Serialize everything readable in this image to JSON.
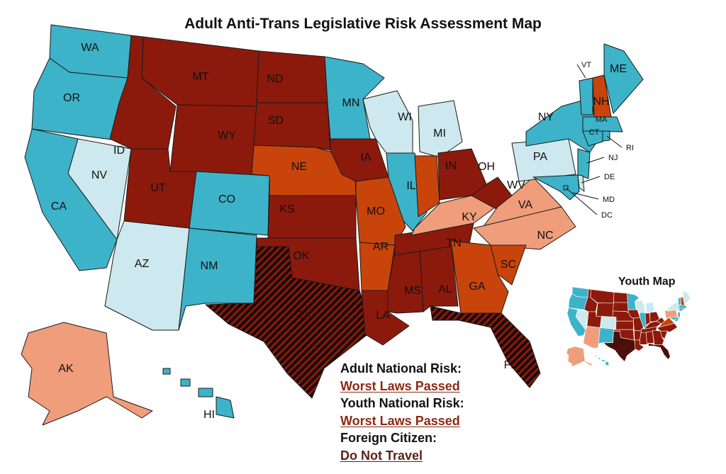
{
  "title": "Adult Anti-Trans Legislative Risk Assessment Map",
  "youth_map_title": "Youth Map",
  "legend": [
    {
      "label": "Adult National Risk:",
      "value": "Worst Laws Passed",
      "value_color": "#8b2a14"
    },
    {
      "label": "Youth National Risk:",
      "value": "Worst Laws Passed",
      "value_color": "#8b2a14"
    },
    {
      "label": "Foreign Citizen:",
      "value": "Do Not Travel",
      "value_color": "#5a2416"
    }
  ],
  "colors": {
    "teal": "#3db3c9",
    "light": "#cde9ef",
    "salmon": "#ef9d7b",
    "orange": "#c9440b",
    "darkred": "#8c1a0c",
    "hatch_base": "#1a0806",
    "hatch_stripe": "#8c1a0c",
    "border": "#1a1a1a"
  },
  "states": [
    {
      "code": "WA",
      "adult": "teal",
      "youth": "teal"
    },
    {
      "code": "OR",
      "adult": "teal",
      "youth": "teal"
    },
    {
      "code": "CA",
      "adult": "teal",
      "youth": "teal"
    },
    {
      "code": "NV",
      "adult": "light",
      "youth": "light"
    },
    {
      "code": "ID",
      "adult": "darkred",
      "youth": "darkred"
    },
    {
      "code": "MT",
      "adult": "darkred",
      "youth": "darkred"
    },
    {
      "code": "WY",
      "adult": "darkred",
      "youth": "darkred"
    },
    {
      "code": "UT",
      "adult": "darkred",
      "youth": "darkred"
    },
    {
      "code": "AZ",
      "adult": "light",
      "youth": "salmon"
    },
    {
      "code": "CO",
      "adult": "teal",
      "youth": "light"
    },
    {
      "code": "NM",
      "adult": "teal",
      "youth": "teal"
    },
    {
      "code": "ND",
      "adult": "darkred",
      "youth": "darkred"
    },
    {
      "code": "SD",
      "adult": "darkred",
      "youth": "darkred"
    },
    {
      "code": "NE",
      "adult": "orange",
      "youth": "darkred"
    },
    {
      "code": "KS",
      "adult": "darkred",
      "youth": "darkred"
    },
    {
      "code": "OK",
      "adult": "darkred",
      "youth": "darkred"
    },
    {
      "code": "TX",
      "adult": "hatch",
      "youth": "hatch"
    },
    {
      "code": "MN",
      "adult": "teal",
      "youth": "teal"
    },
    {
      "code": "IA",
      "adult": "darkred",
      "youth": "darkred"
    },
    {
      "code": "WI",
      "adult": "light",
      "youth": "light"
    },
    {
      "code": "MI",
      "adult": "light",
      "youth": "light"
    },
    {
      "code": "IL",
      "adult": "teal",
      "youth": "teal"
    },
    {
      "code": "MO",
      "adult": "orange",
      "youth": "darkred"
    },
    {
      "code": "AR",
      "adult": "orange",
      "youth": "darkred"
    },
    {
      "code": "LA",
      "adult": "darkred",
      "youth": "darkred"
    },
    {
      "code": "MS",
      "adult": "darkred",
      "youth": "darkred"
    },
    {
      "code": "AL",
      "adult": "darkred",
      "youth": "darkred"
    },
    {
      "code": "TN",
      "adult": "darkred",
      "youth": "darkred"
    },
    {
      "code": "KY",
      "adult": "salmon",
      "youth": "darkred"
    },
    {
      "code": "IN",
      "adult": "orange",
      "youth": "darkred"
    },
    {
      "code": "OH",
      "adult": "darkred",
      "youth": "darkred"
    },
    {
      "code": "WV",
      "adult": "darkred",
      "youth": "darkred"
    },
    {
      "code": "VA",
      "adult": "salmon",
      "youth": "orange"
    },
    {
      "code": "NC",
      "adult": "salmon",
      "youth": "darkred"
    },
    {
      "code": "SC",
      "adult": "orange",
      "youth": "darkred"
    },
    {
      "code": "GA",
      "adult": "orange",
      "youth": "darkred"
    },
    {
      "code": "FL",
      "adult": "hatch",
      "youth": "hatch"
    },
    {
      "code": "PA",
      "adult": "light",
      "youth": "salmon"
    },
    {
      "code": "NY",
      "adult": "teal",
      "youth": "light"
    },
    {
      "code": "NJ",
      "adult": "teal",
      "youth": "teal"
    },
    {
      "code": "DE",
      "adult": "light",
      "youth": "teal"
    },
    {
      "code": "MD",
      "adult": "teal",
      "youth": "teal"
    },
    {
      "code": "DC",
      "adult": "teal",
      "youth": "teal"
    },
    {
      "code": "VT",
      "adult": "teal",
      "youth": "teal"
    },
    {
      "code": "NH",
      "adult": "orange",
      "youth": "orange"
    },
    {
      "code": "ME",
      "adult": "teal",
      "youth": "light"
    },
    {
      "code": "MA",
      "adult": "teal",
      "youth": "teal"
    },
    {
      "code": "CT",
      "adult": "teal",
      "youth": "teal"
    },
    {
      "code": "RI",
      "adult": "teal",
      "youth": "teal"
    },
    {
      "code": "AK",
      "adult": "salmon",
      "youth": "salmon"
    },
    {
      "code": "HI",
      "adult": "teal",
      "youth": "teal"
    }
  ]
}
